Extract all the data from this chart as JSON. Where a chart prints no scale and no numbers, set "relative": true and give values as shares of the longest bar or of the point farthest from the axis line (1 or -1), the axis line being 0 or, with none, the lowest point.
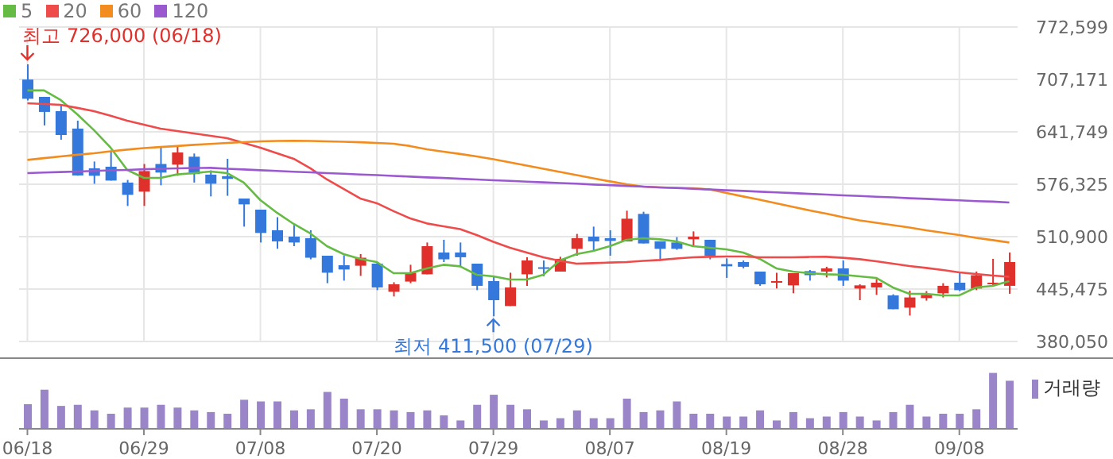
{
  "chart_data": [
    {
      "type": "candlestick",
      "legend": "top left",
      "grid": true,
      "tick_labels": "y",
      "categories": [
        "06/18",
        null,
        null,
        null,
        null,
        null,
        null,
        "06/29",
        null,
        null,
        null,
        null,
        null,
        null,
        "07/08",
        null,
        null,
        null,
        null,
        null,
        null,
        "07/20",
        null,
        null,
        null,
        null,
        null,
        null,
        "07/29",
        null,
        null,
        null,
        null,
        null,
        null,
        "08/07",
        null,
        null,
        null,
        null,
        null,
        null,
        "08/19",
        null,
        null,
        null,
        null,
        null,
        null,
        "08/28",
        null,
        null,
        null,
        null,
        null,
        null,
        "09/08",
        null,
        null,
        null
      ],
      "ylim": [
        380050,
        772599
      ],
      "yticks": [
        {
          "value": 380050,
          "label": "380,050"
        },
        {
          "value": 445475,
          "label": "445,475"
        },
        {
          "value": 510900,
          "label": "510,900"
        },
        {
          "value": 576325,
          "label": "576,325"
        },
        {
          "value": 641749,
          "label": "641,749"
        },
        {
          "value": 707171,
          "label": "707,171"
        },
        {
          "value": 772599,
          "label": "772,599"
        }
      ],
      "ohlc": [
        [
          707000,
          726000,
          681000,
          683000
        ],
        [
          685400,
          685400,
          649700,
          666600
        ],
        [
          667600,
          675500,
          631900,
          637800
        ],
        [
          645800,
          655700,
          587000,
          587300
        ],
        [
          596200,
          604700,
          576900,
          586900
        ],
        [
          598200,
          617400,
          580900,
          580900
        ],
        [
          578400,
          581700,
          549200,
          563100
        ],
        [
          567100,
          601600,
          549200,
          592800
        ],
        [
          601600,
          623400,
          575000,
          590900
        ],
        [
          600800,
          623400,
          586900,
          616000
        ],
        [
          610700,
          614700,
          578400,
          589000
        ],
        [
          588300,
          593600,
          561100,
          577000
        ],
        [
          586300,
          608100,
          561900,
          583000
        ],
        [
          558500,
          558500,
          523400,
          551200
        ],
        [
          544600,
          544600,
          503600,
          515500
        ],
        [
          518900,
          535300,
          495700,
          505000
        ],
        [
          510900,
          525400,
          499000,
          503600
        ],
        [
          509000,
          518900,
          482600,
          484600
        ],
        [
          487100,
          487100,
          452800,
          465900
        ],
        [
          475200,
          487700,
          456000,
          469900
        ],
        [
          474600,
          489100,
          461900,
          484600
        ],
        [
          477200,
          479200,
          444100,
          447500
        ],
        [
          442100,
          454000,
          436200,
          451400
        ],
        [
          454800,
          475800,
          452800,
          465900
        ],
        [
          463900,
          503600,
          463900,
          499000
        ],
        [
          491100,
          507000,
          479200,
          482600
        ],
        [
          491100,
          503600,
          473300,
          485200
        ],
        [
          477200,
          477200,
          444100,
          449500
        ],
        [
          455400,
          461400,
          411500,
          431600
        ],
        [
          424300,
          465900,
          424300,
          447500
        ],
        [
          463900,
          485200,
          449500,
          481200
        ],
        [
          472700,
          481200,
          461400,
          470700
        ],
        [
          467300,
          485800,
          467300,
          483200
        ],
        [
          495700,
          514300,
          487100,
          509000
        ],
        [
          510900,
          523400,
          493100,
          505000
        ],
        [
          509000,
          518900,
          487100,
          505600
        ],
        [
          505000,
          543300,
          505000,
          533300
        ],
        [
          539300,
          542000,
          502400,
          502400
        ],
        [
          505000,
          505000,
          480600,
          495700
        ],
        [
          503600,
          510300,
          494500,
          495700
        ],
        [
          507600,
          517500,
          499000,
          510900
        ],
        [
          507000,
          507000,
          482600,
          487100
        ],
        [
          476600,
          483800,
          459400,
          473900
        ],
        [
          479200,
          481200,
          471300,
          473300
        ],
        [
          467300,
          467300,
          449500,
          451400
        ],
        [
          453400,
          465900,
          446100,
          455400
        ],
        [
          450100,
          465300,
          440200,
          465300
        ],
        [
          467900,
          469300,
          456000,
          462800
        ],
        [
          467300,
          473300,
          460000,
          471300
        ],
        [
          471300,
          481200,
          449500,
          456000
        ],
        [
          446100,
          451400,
          431600,
          450100
        ],
        [
          447500,
          458000,
          438200,
          453400
        ],
        [
          437600,
          439000,
          420300,
          420300
        ],
        [
          422300,
          443500,
          412400,
          435000
        ],
        [
          434200,
          442900,
          431000,
          438200
        ],
        [
          440200,
          452800,
          435000,
          449500
        ],
        [
          453400,
          465900,
          442900,
          444100
        ],
        [
          446100,
          467300,
          444100,
          462800
        ],
        [
          451400,
          483200,
          449500,
          453400
        ],
        [
          449500,
          491100,
          439600,
          479200
        ]
      ],
      "colors": [
        "#3478db",
        "#3478db",
        "#3478db",
        "#3478db",
        "#3478db",
        "#3478db",
        "#3478db",
        "#e0302b",
        "#3478db",
        "#e0302b",
        "#3478db",
        "#3478db",
        "#3478db",
        "#3478db",
        "#3478db",
        "#3478db",
        "#3478db",
        "#3478db",
        "#3478db",
        "#3478db",
        "#e0302b",
        "#3478db",
        "#e0302b",
        "#e0302b",
        "#e0302b",
        "#3478db",
        "#3478db",
        "#3478db",
        "#3478db",
        "#e0302b",
        "#e0302b",
        "#3478db",
        "#e0302b",
        "#e0302b",
        "#3478db",
        "#3478db",
        "#e0302b",
        "#3478db",
        "#3478db",
        "#3478db",
        "#e0302b",
        "#3478db",
        "#3478db",
        "#3478db",
        "#3478db",
        "#e0302b",
        "#e0302b",
        "#3478db",
        "#e0302b",
        "#3478db",
        "#e0302b",
        "#e0302b",
        "#3478db",
        "#e0302b",
        "#e0302b",
        "#e0302b",
        "#3478db",
        "#e0302b",
        "#e0302b",
        "#e0302b"
      ],
      "series": [
        {
          "name": "5",
          "type": "line",
          "color": "#66bb44",
          "values": [
            693400,
            693400,
            681500,
            663600,
            643800,
            622000,
            594200,
            584300,
            584300,
            588600,
            590200,
            592200,
            590200,
            578400,
            556500,
            540700,
            526800,
            514900,
            499000,
            489100,
            483200,
            479200,
            465300,
            465300,
            471300,
            475800,
            473850,
            463300,
            461350,
            457400,
            457400,
            463300,
            481200,
            489100,
            493100,
            499000,
            507000,
            508950,
            507550,
            505000,
            499000,
            497050,
            495100,
            491100,
            483200,
            471300,
            467300,
            465300,
            463900,
            463300,
            461350,
            459400,
            447500,
            439550,
            439550,
            437600,
            437600,
            447500,
            449450,
            455400
          ]
        },
        {
          "name": "20",
          "type": "line",
          "color": "#ee4b4b",
          "values": [
            677500,
            676500,
            675500,
            671600,
            667600,
            661700,
            655700,
            650700,
            645800,
            642800,
            639800,
            636800,
            633900,
            627900,
            622000,
            615000,
            608100,
            596200,
            582300,
            570400,
            558500,
            552600,
            542700,
            533700,
            527400,
            523800,
            520300,
            512900,
            504400,
            497000,
            491100,
            485150,
            480600,
            477200,
            477800,
            478600,
            479200,
            480600,
            481800,
            483600,
            485150,
            485750,
            486100,
            486100,
            485150,
            485150,
            485150,
            485550,
            485750,
            484550,
            482800,
            480200,
            477200,
            474200,
            471900,
            469300,
            466300,
            464300,
            462300,
            460800
          ]
        },
        {
          "name": "60",
          "type": "line",
          "color": "#f28c1e",
          "values": [
            606700,
            608900,
            611100,
            613100,
            615000,
            617400,
            619600,
            621400,
            622800,
            624000,
            625500,
            626700,
            627900,
            628900,
            629900,
            630300,
            630500,
            630300,
            629900,
            629300,
            628700,
            627900,
            626900,
            624000,
            620000,
            617000,
            614100,
            611100,
            607500,
            603500,
            599600,
            595600,
            591600,
            587700,
            583700,
            579900,
            576400,
            573400,
            572400,
            571800,
            571400,
            569800,
            565500,
            561100,
            556900,
            552600,
            548000,
            543700,
            539700,
            535100,
            531200,
            528200,
            525200,
            522300,
            518900,
            515900,
            512900,
            509400,
            506600,
            503600
          ]
        },
        {
          "name": "120",
          "type": "line",
          "color": "#9b59d0",
          "values": [
            590200,
            591000,
            591600,
            592200,
            593000,
            593600,
            594200,
            595000,
            595600,
            596200,
            596600,
            596800,
            595600,
            594800,
            593800,
            593000,
            592000,
            591200,
            590200,
            589500,
            588500,
            587700,
            586700,
            585900,
            584900,
            584100,
            583100,
            582300,
            581300,
            580500,
            579500,
            578700,
            577800,
            577000,
            576000,
            575200,
            574200,
            573400,
            572400,
            571600,
            570600,
            569800,
            568800,
            568000,
            567000,
            566100,
            565300,
            564300,
            563500,
            562500,
            561700,
            560700,
            559900,
            558900,
            558100,
            557100,
            556300,
            555300,
            554600,
            553600
          ]
        }
      ],
      "annotations": [
        "최고 726,000 (06/18)",
        {
          "text": "최저 411,500 (07/29)",
          "x": "07/29",
          "y": 411500
        }
      ]
    },
    {
      "type": "bar",
      "relative": true,
      "legend": "top right",
      "tick_labels": "x",
      "categories": [
        "06/18",
        null,
        null,
        null,
        null,
        null,
        null,
        "06/29",
        null,
        null,
        null,
        null,
        null,
        null,
        "07/08",
        null,
        null,
        null,
        null,
        null,
        null,
        "07/20",
        null,
        null,
        null,
        null,
        null,
        null,
        "07/29",
        null,
        null,
        null,
        null,
        null,
        null,
        "08/07",
        null,
        null,
        null,
        null,
        null,
        null,
        "08/19",
        null,
        null,
        null,
        null,
        null,
        null,
        "08/28",
        null,
        null,
        null,
        null,
        null,
        null,
        "09/08",
        null,
        null,
        null
      ],
      "series": [
        {
          "name": "거래량",
          "color": "#9b85c9",
          "values": [
            0.44,
            0.7,
            0.41,
            0.43,
            0.33,
            0.27,
            0.38,
            0.38,
            0.43,
            0.38,
            0.33,
            0.3,
            0.27,
            0.52,
            0.49,
            0.49,
            0.33,
            0.35,
            0.66,
            0.54,
            0.35,
            0.35,
            0.33,
            0.3,
            0.33,
            0.24,
            0.15,
            0.43,
            0.61,
            0.43,
            0.35,
            0.15,
            0.19,
            0.33,
            0.19,
            0.19,
            0.54,
            0.3,
            0.33,
            0.49,
            0.27,
            0.27,
            0.22,
            0.22,
            0.33,
            0.15,
            0.3,
            0.19,
            0.22,
            0.3,
            0.22,
            0.15,
            0.3,
            0.43,
            0.22,
            0.27,
            0.27,
            0.35,
            1,
            0.86
          ]
        }
      ]
    }
  ]
}
